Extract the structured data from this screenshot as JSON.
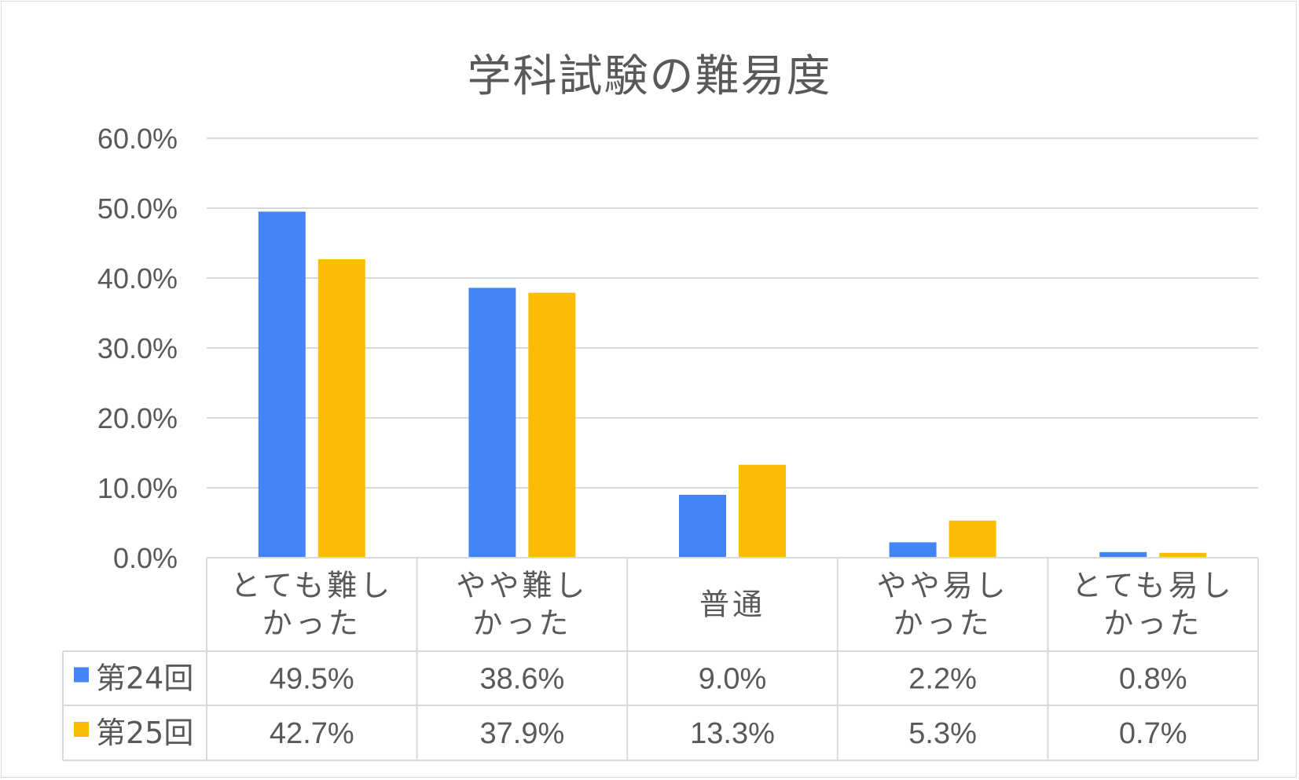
{
  "chart_data": {
    "type": "bar",
    "title": "学科試験の難易度",
    "xlabel": "",
    "ylabel": "",
    "ylim": [
      0,
      60
    ],
    "yticks": [
      "0.0%",
      "10.0%",
      "20.0%",
      "30.0%",
      "40.0%",
      "50.0%",
      "60.0%"
    ],
    "grid": true,
    "legend": "data-table",
    "categories": [
      [
        "とても難し",
        "かった"
      ],
      [
        "やや難し",
        "かった"
      ],
      [
        "普通"
      ],
      [
        "やや易し",
        "かった"
      ],
      [
        "とても易し",
        "かった"
      ]
    ],
    "series": [
      {
        "name": "第24回",
        "color": "#4285f4",
        "values": [
          49.5,
          38.6,
          9.0,
          2.2,
          0.8
        ],
        "labels": [
          "49.5%",
          "38.6%",
          "9.0%",
          "2.2%",
          "0.8%"
        ]
      },
      {
        "name": "第25回",
        "color": "#fbbc04",
        "values": [
          42.7,
          37.9,
          13.3,
          5.3,
          0.7
        ],
        "labels": [
          "42.7%",
          "37.9%",
          "13.3%",
          "5.3%",
          "0.7%"
        ]
      }
    ]
  }
}
